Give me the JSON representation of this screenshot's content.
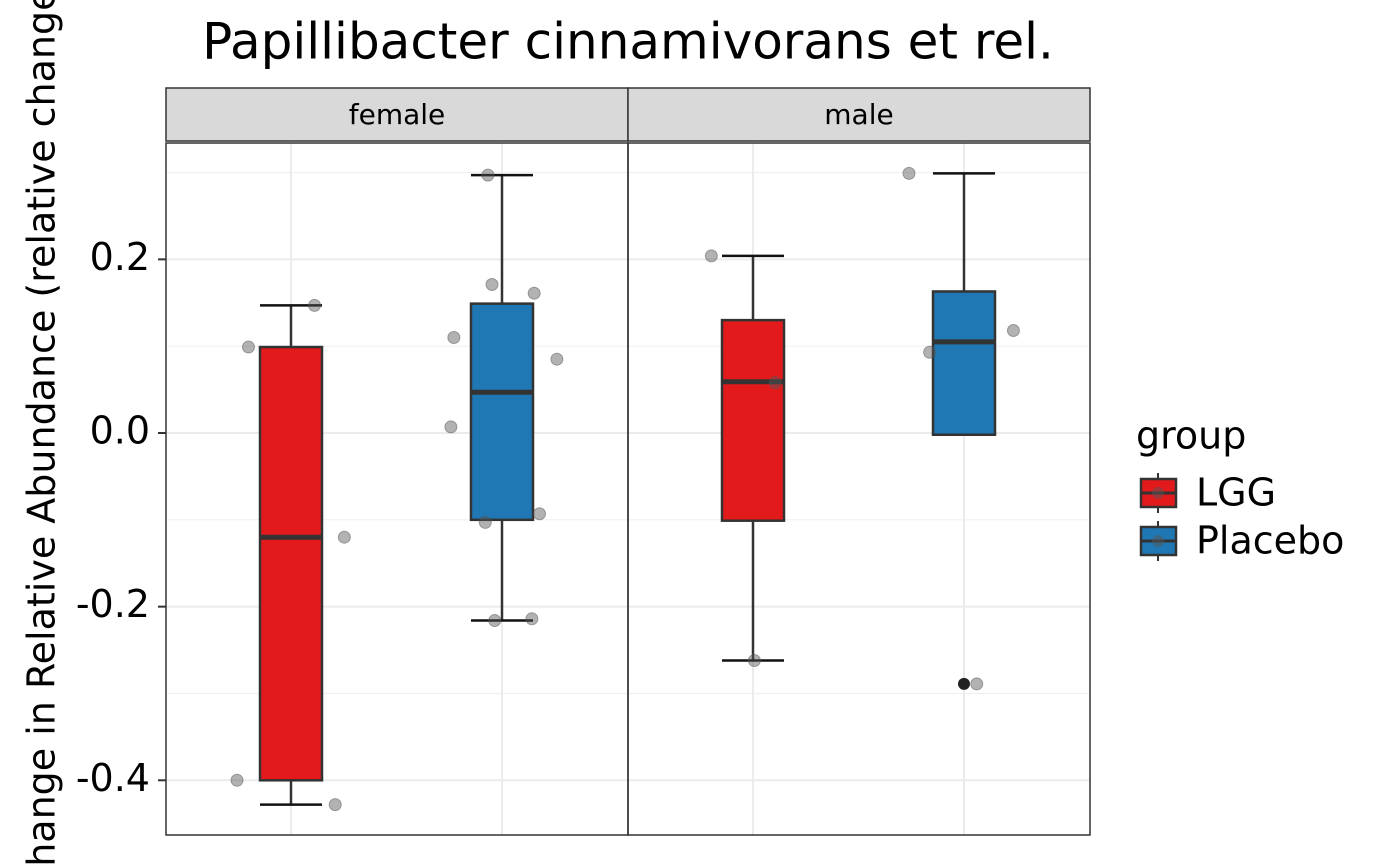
{
  "chart_data": {
    "type": "box",
    "title": "Papillibacter cinnamivorans et rel.",
    "ylabel": "Change in Relative Abundance (relative change)",
    "legend_title": "group",
    "facets": [
      "female",
      "male"
    ],
    "ylim": [
      -0.463,
      0.334
    ],
    "yticks": [
      -0.4,
      -0.2,
      {
        "value": 0,
        "label": "0.0"
      },
      0.2
    ],
    "grid": true,
    "series": [
      {
        "name": "LGG",
        "color": "#e31a1c",
        "boxes": [
          {
            "whisker_low": -0.428,
            "q1": -0.4,
            "median": -0.12,
            "q3": 0.099,
            "whisker_high": 0.147,
            "points": [
              0.147,
              0.099,
              -0.12,
              -0.4,
              -0.428
            ],
            "outliers": []
          },
          {
            "whisker_low": -0.262,
            "q1": -0.101,
            "median": 0.059,
            "q3": 0.13,
            "whisker_high": 0.204,
            "points": [
              0.204,
              0.058,
              -0.262
            ],
            "outliers": []
          }
        ]
      },
      {
        "name": "Placebo",
        "color": "#1f78b4",
        "boxes": [
          {
            "whisker_low": -0.216,
            "q1": -0.1,
            "median": 0.047,
            "q3": 0.149,
            "whisker_high": 0.297,
            "points": [
              0.297,
              0.171,
              0.161,
              0.11,
              0.085,
              0.007,
              -0.093,
              -0.103,
              -0.216,
              -0.214
            ],
            "outliers": []
          },
          {
            "whisker_low": -0.002,
            "q1": -0.002,
            "median": 0.105,
            "q3": 0.163,
            "whisker_high": 0.299,
            "points": [
              0.299,
              0.118,
              0.093,
              -0.289
            ],
            "outliers": [
              -0.289
            ]
          }
        ]
      }
    ]
  }
}
